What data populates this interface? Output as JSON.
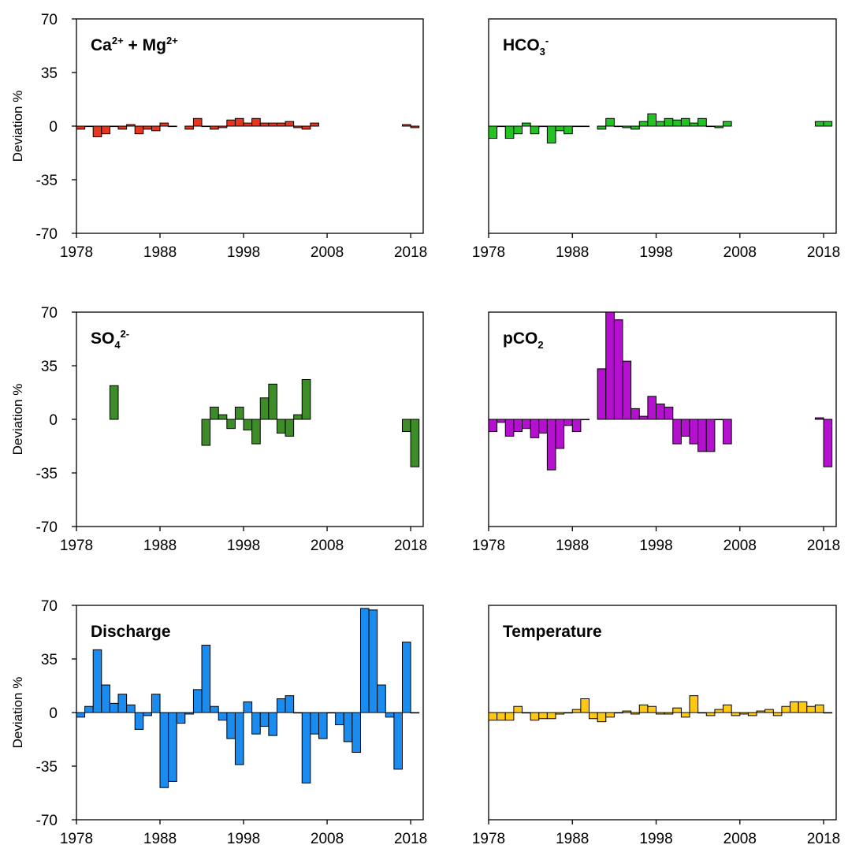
{
  "chart_data": [
    {
      "type": "bar",
      "title": "Ca²⁺ + Mg²⁺",
      "title_parts": [
        [
          "Ca",
          ""
        ],
        [
          "2+",
          "sup"
        ],
        [
          " + Mg",
          ""
        ],
        [
          "2+",
          "sup"
        ]
      ],
      "color": "#E8361F",
      "ylabel": "Deviation %",
      "ylim": [
        -70,
        70
      ],
      "yticks": [
        70,
        35,
        0,
        -35,
        -70
      ],
      "xlim": [
        1978,
        2019.5
      ],
      "xticks": [
        1978,
        1988,
        1998,
        2008,
        2018
      ],
      "x": [
        1978,
        1979,
        1980,
        1981,
        1982,
        1983,
        1984,
        1985,
        1986,
        1987,
        1988,
        1989,
        1991,
        1992,
        1993,
        1994,
        1995,
        1996,
        1997,
        1998,
        1999,
        2000,
        2001,
        2002,
        2003,
        2004,
        2005,
        2006,
        2017,
        2018
      ],
      "values": [
        -2,
        0,
        -7,
        -5,
        0,
        -2,
        1,
        -5,
        -2,
        -3,
        2,
        0,
        -2,
        5,
        0,
        -2,
        -1,
        4,
        5,
        2,
        5,
        2,
        2,
        2,
        3,
        -1,
        -2,
        2,
        1,
        -1
      ]
    },
    {
      "type": "bar",
      "title": "HCO₃⁻",
      "title_parts": [
        [
          "HCO",
          ""
        ],
        [
          "3",
          "sub"
        ],
        [
          "-",
          "sup"
        ]
      ],
      "color": "#22C322",
      "ylabel": "",
      "ylim": [
        -70,
        70
      ],
      "yticks": [],
      "xlim": [
        1978,
        2019.5
      ],
      "xticks": [
        1978,
        1988,
        1998,
        2008,
        2018
      ],
      "x": [
        1978,
        1979,
        1980,
        1981,
        1982,
        1983,
        1984,
        1985,
        1986,
        1987,
        1988,
        1989,
        1991,
        1992,
        1993,
        1994,
        1995,
        1996,
        1997,
        1998,
        1999,
        2000,
        2001,
        2002,
        2003,
        2004,
        2005,
        2006,
        2017,
        2018
      ],
      "values": [
        -8,
        0,
        -8,
        -5,
        2,
        -5,
        0,
        -11,
        -3,
        -5,
        0,
        0,
        -2,
        5,
        0,
        -1,
        -2,
        3,
        8,
        3,
        5,
        4,
        5,
        2,
        5,
        0,
        -1,
        3,
        3,
        3
      ]
    },
    {
      "type": "bar",
      "title": "SO₄²⁻",
      "title_parts": [
        [
          "SO",
          ""
        ],
        [
          "4",
          "sub"
        ],
        [
          "2-",
          "sup"
        ]
      ],
      "color": "#3E8C28",
      "ylabel": "Deviation %",
      "ylim": [
        -70,
        70
      ],
      "yticks": [
        70,
        35,
        0,
        -35,
        -70
      ],
      "xlim": [
        1978,
        2019.5
      ],
      "xticks": [
        1978,
        1988,
        1998,
        2008,
        2018
      ],
      "x": [
        1982,
        1993,
        1994,
        1995,
        1996,
        1997,
        1998,
        1999,
        2000,
        2001,
        2002,
        2003,
        2004,
        2005,
        2017,
        2018
      ],
      "values": [
        22,
        -17,
        8,
        3,
        -6,
        8,
        -7,
        -16,
        14,
        23,
        -9,
        -11,
        3,
        26,
        -8,
        -31
      ]
    },
    {
      "type": "bar",
      "title": "pCO₂",
      "title_parts": [
        [
          "pCO",
          ""
        ],
        [
          "2",
          "sub"
        ]
      ],
      "color": "#B510CF",
      "ylabel": "",
      "ylim": [
        -70,
        70
      ],
      "yticks": [],
      "xlim": [
        1978,
        2019.5
      ],
      "xticks": [
        1978,
        1988,
        1998,
        2008,
        2018
      ],
      "x": [
        1978,
        1979,
        1980,
        1981,
        1982,
        1983,
        1984,
        1985,
        1986,
        1987,
        1988,
        1989,
        1991,
        1992,
        1993,
        1994,
        1995,
        1996,
        1997,
        1998,
        1999,
        2000,
        2001,
        2002,
        2003,
        2004,
        2005,
        2006,
        2017,
        2018
      ],
      "values": [
        -8,
        -2,
        -11,
        -8,
        -6,
        -12,
        -9,
        -33,
        -19,
        -4,
        -8,
        0,
        33,
        70,
        65,
        38,
        7,
        2,
        15,
        10,
        8,
        -16,
        -11,
        -16,
        -21,
        -21,
        0,
        -16,
        1,
        -31
      ]
    },
    {
      "type": "bar",
      "title": "Discharge",
      "title_parts": [
        [
          "Discharge",
          ""
        ]
      ],
      "color": "#1A8CF0",
      "ylabel": "Deviation %",
      "ylim": [
        -70,
        70
      ],
      "yticks": [
        70,
        35,
        0,
        -35,
        -70
      ],
      "xlim": [
        1978,
        2019.5
      ],
      "xticks": [
        1978,
        1988,
        1998,
        2008,
        2018
      ],
      "x": [
        1978,
        1979,
        1980,
        1981,
        1982,
        1983,
        1984,
        1985,
        1986,
        1987,
        1988,
        1989,
        1990,
        1991,
        1992,
        1993,
        1994,
        1995,
        1996,
        1997,
        1998,
        1999,
        2000,
        2001,
        2002,
        2003,
        2004,
        2005,
        2006,
        2007,
        2008,
        2009,
        2010,
        2011,
        2012,
        2013,
        2014,
        2015,
        2016,
        2017,
        2018
      ],
      "values": [
        -3,
        4,
        41,
        18,
        6,
        12,
        5,
        -11,
        -2,
        12,
        -49,
        -45,
        -7,
        -1,
        15,
        44,
        4,
        -5,
        -17,
        -34,
        7,
        -14,
        -9,
        -15,
        9,
        11,
        0,
        -46,
        -14,
        -17,
        0,
        -8,
        -19,
        -26,
        68,
        67,
        18,
        -3,
        -37,
        46,
        0
      ]
    },
    {
      "type": "bar",
      "title": "Temperature",
      "title_parts": [
        [
          "Temperature",
          ""
        ]
      ],
      "color": "#FFC815",
      "ylabel": "",
      "ylim": [
        -70,
        70
      ],
      "yticks": [],
      "xlim": [
        1978,
        2019.5
      ],
      "xticks": [
        1978,
        1988,
        1998,
        2008,
        2018
      ],
      "x": [
        1978,
        1979,
        1980,
        1981,
        1982,
        1983,
        1984,
        1985,
        1986,
        1987,
        1988,
        1989,
        1990,
        1991,
        1992,
        1993,
        1994,
        1995,
        1996,
        1997,
        1998,
        1999,
        2000,
        2001,
        2002,
        2003,
        2004,
        2005,
        2006,
        2007,
        2008,
        2009,
        2010,
        2011,
        2012,
        2013,
        2014,
        2015,
        2016,
        2017,
        2018
      ],
      "values": [
        -5,
        -5,
        -5,
        4,
        0,
        -5,
        -4,
        -4,
        -1,
        0,
        2,
        9,
        -4,
        -6,
        -3,
        0,
        1,
        -1,
        5,
        4,
        -1,
        -1,
        3,
        -3,
        11,
        0,
        -2,
        2,
        5,
        -2,
        -1,
        -2,
        1,
        2,
        -2,
        4,
        7,
        7,
        4,
        5,
        0
      ]
    }
  ]
}
